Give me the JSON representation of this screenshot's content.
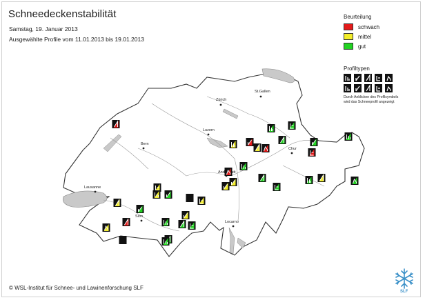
{
  "header": {
    "title": "Schneedeckenstabilität",
    "date": "Samstag, 19. Januar 2013",
    "range": "Ausgewählte Profile vom 11.01.2013 bis 19.01.2013"
  },
  "legend": {
    "title": "Beurteilung",
    "items": [
      {
        "label": "schwach",
        "color": "#e41b1b"
      },
      {
        "label": "mittel",
        "color": "#f3ee2a"
      },
      {
        "label": "gut",
        "color": "#22d322"
      }
    ]
  },
  "profiltypen": {
    "title": "Profiltypen",
    "note_line1": "Durch Anklicken des Profilsymbols",
    "note_line2": "wird das Schneeprofil angezeigt"
  },
  "cities": {
    "zurich": "Zürich",
    "stgallen": "St.Gallen",
    "luzern": "Luzern",
    "bern": "Bern",
    "chur": "Chur",
    "andermatt": "Andermatt",
    "lausanne": "Lausanne",
    "sion": "Sion",
    "locarno": "Locarno"
  },
  "profiles": [
    {
      "rating": "schwach",
      "type": 3
    },
    {
      "rating": "gut",
      "type": 1
    },
    {
      "rating": "gut",
      "type": 4
    },
    {
      "rating": "schwach",
      "type": 2
    },
    {
      "rating": "mittel",
      "type": 3
    },
    {
      "rating": "mittel",
      "type": 1
    },
    {
      "rating": "schwach",
      "type": 5
    },
    {
      "rating": "mittel",
      "type": 2
    },
    {
      "rating": "gut",
      "type": 1
    },
    {
      "rating": "schwach",
      "type": 4
    },
    {
      "rating": "gut",
      "type": 3
    },
    {
      "rating": "gut",
      "type": 2
    },
    {
      "rating": "gut",
      "type": 1
    },
    {
      "rating": "schwach",
      "type": 5
    },
    {
      "rating": "gut",
      "type": 3
    },
    {
      "rating": "gut",
      "type": 4
    },
    {
      "rating": "mittel",
      "type": 2
    },
    {
      "rating": "gut",
      "type": 1
    },
    {
      "rating": "mittel",
      "type": 3
    },
    {
      "rating": "gut",
      "type": 5
    },
    {
      "rating": "mittel",
      "type": 4
    },
    {
      "rating": "mittel",
      "type": 1
    },
    {
      "rating": "gut",
      "type": 2
    },
    {
      "rating": "mittel",
      "type": 3
    },
    {
      "rating": "gut",
      "type": 2
    },
    {
      "rating": "schwach",
      "type": 3
    },
    {
      "rating": "none",
      "type": 0
    },
    {
      "rating": "mittel",
      "type": 4
    },
    {
      "rating": "gut",
      "type": 1
    },
    {
      "rating": "mittel",
      "type": 5
    },
    {
      "rating": "gut",
      "type": 3
    },
    {
      "rating": "mittel",
      "type": 2
    },
    {
      "rating": "gut",
      "type": 4
    },
    {
      "rating": "gut",
      "type": 3
    },
    {
      "rating": "none",
      "type": 0
    },
    {
      "rating": "gut",
      "type": 1
    }
  ],
  "footer": {
    "credit": "© WSL-Institut für Schnee- und Lawinenforschung SLF",
    "logo_text": "SLF"
  }
}
